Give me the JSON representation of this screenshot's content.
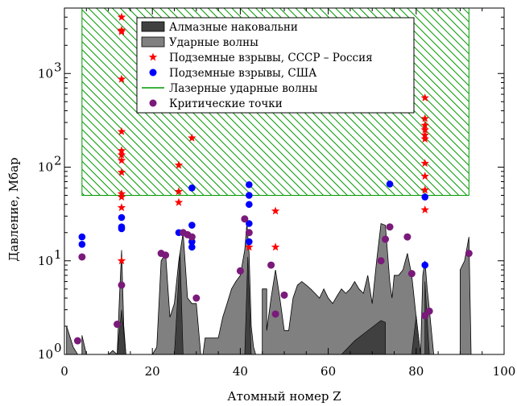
{
  "chart_data": {
    "type": "scatter",
    "xlabel": "Атомный номер Z",
    "ylabel": "Давление, Мбар",
    "xlim": [
      0,
      100
    ],
    "ylim": [
      1,
      5000
    ],
    "yscale": "log",
    "x_ticks": [
      0,
      20,
      40,
      60,
      80,
      100
    ],
    "x_tick_labels": [
      "0",
      "20",
      "40",
      "60",
      "80",
      "100"
    ],
    "y_ticks": [
      1,
      10,
      100,
      1000
    ],
    "y_tick_labels": [
      "10",
      "10",
      "10",
      "10"
    ],
    "y_tick_exponents": [
      "0",
      "1",
      "2",
      "3"
    ],
    "grid": false,
    "legend_position": "top-center",
    "colors": {
      "diamond": "#404040",
      "shock": "#808080",
      "ussr": "#ff0000",
      "usa": "#0000ff",
      "laser": "#009900",
      "critical": "#7a1a7a"
    },
    "legend": [
      {
        "key": "diamond",
        "label": "Алмазные наковальни",
        "marker": "box-dark"
      },
      {
        "key": "shock",
        "label": "Ударные волны",
        "marker": "box-gray"
      },
      {
        "key": "ussr",
        "label": "Подземные взрывы, СССР – Россия",
        "marker": "star"
      },
      {
        "key": "usa",
        "label": "Подземные взрывы, США",
        "marker": "dot"
      },
      {
        "key": "laser",
        "label": "Лазерные ударные волны",
        "marker": "line"
      },
      {
        "key": "critical",
        "label": "Критические точки",
        "marker": "dot"
      }
    ],
    "laser_region": {
      "x_range": [
        4,
        92
      ],
      "y_range": [
        50,
        5000
      ]
    },
    "shock_waves": [
      [
        0.5,
        1
      ],
      [
        0.5,
        2
      ],
      [
        2,
        1.2
      ],
      [
        3,
        1
      ],
      [
        4,
        1
      ],
      [
        4,
        1.6
      ],
      [
        5,
        1
      ],
      [
        10,
        1
      ],
      [
        11,
        1.1
      ],
      [
        12,
        1
      ],
      [
        12.5,
        4
      ],
      [
        13,
        13
      ],
      [
        13.5,
        2
      ],
      [
        14,
        1
      ],
      [
        15,
        1
      ],
      [
        20,
        1
      ],
      [
        21,
        1.2
      ],
      [
        22,
        10
      ],
      [
        23,
        12
      ],
      [
        24,
        2.5
      ],
      [
        25,
        3.5
      ],
      [
        26,
        10
      ],
      [
        27,
        20
      ],
      [
        28,
        4
      ],
      [
        29,
        3.5
      ],
      [
        30,
        3.5
      ],
      [
        31,
        1
      ],
      [
        31.5,
        1
      ],
      [
        32,
        1.5
      ],
      [
        33,
        1.5
      ],
      [
        34,
        1.5
      ],
      [
        35,
        1.5
      ],
      [
        36,
        2.5
      ],
      [
        37,
        3.5
      ],
      [
        38,
        5
      ],
      [
        39,
        6
      ],
      [
        40,
        7
      ],
      [
        41,
        13
      ],
      [
        41.5,
        25
      ],
      [
        42,
        12
      ],
      [
        42.5,
        2
      ],
      [
        43,
        1.2
      ],
      [
        43.5,
        1
      ],
      [
        45,
        1
      ],
      [
        45,
        5
      ],
      [
        46,
        5
      ],
      [
        46,
        1.8
      ],
      [
        47,
        4
      ],
      [
        48,
        8
      ],
      [
        49,
        4
      ],
      [
        50,
        1.8
      ],
      [
        51,
        1.8
      ],
      [
        52,
        4
      ],
      [
        53,
        5.5
      ],
      [
        54,
        6
      ],
      [
        55,
        5.5
      ],
      [
        56,
        5
      ],
      [
        57,
        4.5
      ],
      [
        58,
        4
      ],
      [
        59,
        5
      ],
      [
        60,
        4
      ],
      [
        61,
        3.5
      ],
      [
        62,
        4.2
      ],
      [
        63,
        5
      ],
      [
        64,
        4.5
      ],
      [
        65,
        5
      ],
      [
        66,
        6
      ],
      [
        67,
        5
      ],
      [
        68,
        4.5
      ],
      [
        69,
        7
      ],
      [
        70,
        3.5
      ],
      [
        71,
        10
      ],
      [
        72,
        25
      ],
      [
        73,
        24
      ],
      [
        74,
        6
      ],
      [
        74.5,
        4
      ],
      [
        75,
        7
      ],
      [
        76,
        7
      ],
      [
        77,
        8
      ],
      [
        78,
        12
      ],
      [
        79,
        7
      ],
      [
        80,
        2.5
      ],
      [
        81,
        1
      ],
      [
        81.5,
        7
      ],
      [
        82,
        10
      ],
      [
        82.5,
        5
      ],
      [
        83,
        3
      ],
      [
        84,
        1
      ],
      [
        90,
        1
      ],
      [
        90,
        8
      ],
      [
        91,
        10
      ],
      [
        92,
        18
      ],
      [
        92.5,
        1
      ]
    ],
    "diamond_anvil": [
      [
        [
          12,
          1
        ],
        [
          13,
          3
        ],
        [
          14,
          1
        ]
      ],
      [
        [
          25,
          1
        ],
        [
          25.5,
          2.5
        ],
        [
          26.3,
          12
        ],
        [
          27,
          1
        ]
      ],
      [
        [
          41,
          1
        ],
        [
          41.7,
          11
        ],
        [
          42.5,
          1
        ]
      ],
      [
        [
          63,
          1
        ],
        [
          66,
          1.4
        ],
        [
          69,
          1.8
        ],
        [
          72,
          2.3
        ],
        [
          73,
          2.2
        ],
        [
          73,
          1
        ]
      ],
      [
        [
          79,
          1
        ],
        [
          80,
          2.6
        ],
        [
          81,
          1
        ]
      ],
      [
        [
          82,
          1
        ],
        [
          82,
          6
        ],
        [
          82.6,
          2
        ],
        [
          83,
          1
        ]
      ]
    ],
    "ussr_explosions": [
      {
        "x": 13,
        "y": 4000
      },
      {
        "x": 13,
        "y": 2900
      },
      {
        "x": 13,
        "y": 2800
      },
      {
        "x": 13,
        "y": 870
      },
      {
        "x": 13,
        "y": 240
      },
      {
        "x": 13,
        "y": 150
      },
      {
        "x": 13,
        "y": 135
      },
      {
        "x": 13,
        "y": 118
      },
      {
        "x": 13,
        "y": 88
      },
      {
        "x": 13,
        "y": 52
      },
      {
        "x": 13,
        "y": 48
      },
      {
        "x": 13,
        "y": 37
      },
      {
        "x": 13,
        "y": 10
      },
      {
        "x": 26,
        "y": 105
      },
      {
        "x": 26,
        "y": 55
      },
      {
        "x": 26,
        "y": 42
      },
      {
        "x": 29,
        "y": 205
      },
      {
        "x": 42,
        "y": 14
      },
      {
        "x": 48,
        "y": 34
      },
      {
        "x": 48,
        "y": 14
      },
      {
        "x": 82,
        "y": 550
      },
      {
        "x": 82,
        "y": 330
      },
      {
        "x": 82,
        "y": 280
      },
      {
        "x": 82,
        "y": 250
      },
      {
        "x": 82,
        "y": 220
      },
      {
        "x": 82,
        "y": 200
      },
      {
        "x": 82,
        "y": 110
      },
      {
        "x": 82,
        "y": 80
      },
      {
        "x": 82,
        "y": 57
      },
      {
        "x": 82,
        "y": 35
      }
    ],
    "usa_explosions": [
      {
        "x": 4,
        "y": 18
      },
      {
        "x": 4,
        "y": 15
      },
      {
        "x": 13,
        "y": 29
      },
      {
        "x": 13,
        "y": 23
      },
      {
        "x": 13,
        "y": 22
      },
      {
        "x": 26,
        "y": 20
      },
      {
        "x": 29,
        "y": 60
      },
      {
        "x": 29,
        "y": 24
      },
      {
        "x": 29,
        "y": 16
      },
      {
        "x": 29,
        "y": 14
      },
      {
        "x": 42,
        "y": 65
      },
      {
        "x": 42,
        "y": 50
      },
      {
        "x": 42,
        "y": 40
      },
      {
        "x": 42,
        "y": 25
      },
      {
        "x": 42,
        "y": 16
      },
      {
        "x": 74,
        "y": 66
      },
      {
        "x": 82,
        "y": 48
      },
      {
        "x": 82,
        "y": 9
      }
    ],
    "critical_points": [
      {
        "x": 3,
        "y": 1.4
      },
      {
        "x": 4,
        "y": 11
      },
      {
        "x": 12,
        "y": 2.1
      },
      {
        "x": 13,
        "y": 5.5
      },
      {
        "x": 22,
        "y": 12
      },
      {
        "x": 23,
        "y": 11.5
      },
      {
        "x": 27,
        "y": 20
      },
      {
        "x": 28,
        "y": 19
      },
      {
        "x": 29,
        "y": 18
      },
      {
        "x": 30,
        "y": 4
      },
      {
        "x": 40,
        "y": 7.8
      },
      {
        "x": 41,
        "y": 28
      },
      {
        "x": 42,
        "y": 20
      },
      {
        "x": 47,
        "y": 9
      },
      {
        "x": 48,
        "y": 2.7
      },
      {
        "x": 50,
        "y": 4.3
      },
      {
        "x": 72,
        "y": 10
      },
      {
        "x": 73,
        "y": 17
      },
      {
        "x": 74,
        "y": 23
      },
      {
        "x": 78,
        "y": 18
      },
      {
        "x": 79,
        "y": 7.3
      },
      {
        "x": 82,
        "y": 2.6
      },
      {
        "x": 83,
        "y": 2.9
      },
      {
        "x": 92,
        "y": 12
      }
    ]
  }
}
